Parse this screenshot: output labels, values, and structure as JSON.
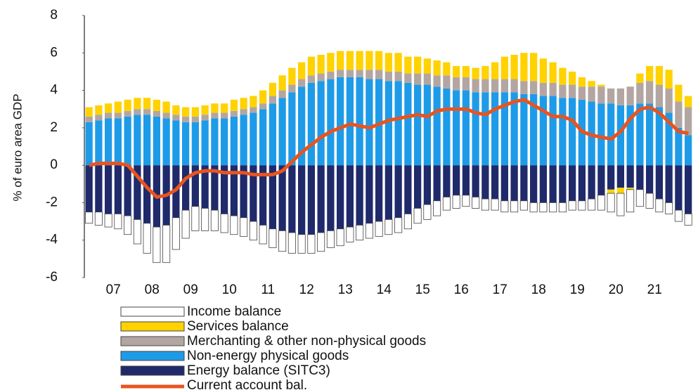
{
  "chart_data": {
    "type": "bar",
    "stacked": true,
    "y_label": "% of euro area GDP",
    "ylim": [
      -6,
      8
    ],
    "yticks": [
      -6,
      -4,
      -2,
      0,
      2,
      4,
      6,
      8
    ],
    "categories": [
      null,
      null,
      "07",
      null,
      null,
      null,
      "08",
      null,
      null,
      null,
      "09",
      null,
      null,
      null,
      "10",
      null,
      null,
      null,
      "11",
      null,
      null,
      null,
      "12",
      null,
      null,
      null,
      "13",
      null,
      null,
      null,
      "14",
      null,
      null,
      null,
      "15",
      null,
      null,
      null,
      "16",
      null,
      null,
      null,
      "17",
      null,
      null,
      null,
      "18",
      null,
      null,
      null,
      "19",
      null,
      null,
      null,
      "20",
      null,
      null,
      null,
      "21",
      null,
      null,
      null,
      null
    ],
    "series": [
      {
        "name": "Income balance",
        "color": "#ffffff",
        "values": [
          -0.6,
          -0.7,
          -0.7,
          -0.8,
          -1.0,
          -1.3,
          -1.6,
          -1.9,
          -2.0,
          -1.7,
          -1.5,
          -1.3,
          -1.2,
          -1.1,
          -1.0,
          -1.0,
          -1.0,
          -1.0,
          -1.0,
          -1.0,
          -1.1,
          -1.1,
          -1.0,
          -1.0,
          -1.0,
          -0.9,
          -0.9,
          -0.8,
          -0.8,
          -0.8,
          -0.8,
          -0.8,
          -0.8,
          -0.8,
          -0.8,
          -0.8,
          -0.8,
          -0.7,
          -0.7,
          -0.6,
          -0.6,
          -0.6,
          -0.6,
          -0.6,
          -0.6,
          -0.5,
          -0.5,
          -0.5,
          -0.5,
          -0.5,
          -0.5,
          -0.5,
          -0.6,
          -0.8,
          -1.0,
          -1.2,
          -1.2,
          -0.9,
          -0.8,
          -0.7,
          -0.6,
          -0.6,
          -0.6
        ]
      },
      {
        "name": "Services balance",
        "color": "#ffd200",
        "values": [
          0.5,
          0.5,
          0.5,
          0.6,
          0.6,
          0.6,
          0.6,
          0.6,
          0.6,
          0.5,
          0.5,
          0.5,
          0.5,
          0.5,
          0.5,
          0.6,
          0.6,
          0.6,
          0.7,
          0.7,
          0.8,
          0.9,
          0.9,
          1.0,
          1.0,
          1.0,
          1.0,
          1.0,
          1.0,
          1.0,
          1.0,
          1.0,
          1.0,
          0.9,
          0.9,
          0.8,
          0.8,
          0.7,
          0.6,
          0.6,
          0.6,
          0.7,
          0.9,
          1.2,
          1.3,
          1.5,
          1.5,
          1.3,
          1.1,
          0.9,
          0.7,
          0.5,
          0.3,
          0.1,
          -0.2,
          -0.3,
          -0.1,
          0.5,
          0.8,
          1.0,
          1.0,
          0.9,
          0.6
        ]
      },
      {
        "name": "Merchanting & other non-physical goods",
        "color": "#b3a6a2",
        "values": [
          0.3,
          0.3,
          0.3,
          0.3,
          0.3,
          0.3,
          0.3,
          0.3,
          0.3,
          0.3,
          0.3,
          0.3,
          0.3,
          0.3,
          0.3,
          0.3,
          0.3,
          0.3,
          0.3,
          0.4,
          0.4,
          0.4,
          0.4,
          0.4,
          0.4,
          0.4,
          0.4,
          0.4,
          0.4,
          0.5,
          0.5,
          0.5,
          0.5,
          0.5,
          0.6,
          0.6,
          0.6,
          0.7,
          0.7,
          0.7,
          0.7,
          0.7,
          0.7,
          0.7,
          0.7,
          0.7,
          0.7,
          0.7,
          0.7,
          0.7,
          0.7,
          0.7,
          0.8,
          0.9,
          0.8,
          0.9,
          1.0,
          1.1,
          1.2,
          1.2,
          1.3,
          1.4,
          1.5
        ]
      },
      {
        "name": "Non-energy physical goods",
        "color": "#1e9be8",
        "values": [
          2.3,
          2.4,
          2.5,
          2.5,
          2.6,
          2.7,
          2.7,
          2.6,
          2.5,
          2.4,
          2.3,
          2.3,
          2.4,
          2.5,
          2.5,
          2.6,
          2.7,
          2.8,
          3.0,
          3.3,
          3.6,
          3.9,
          4.2,
          4.4,
          4.5,
          4.6,
          4.7,
          4.7,
          4.7,
          4.6,
          4.6,
          4.5,
          4.5,
          4.4,
          4.3,
          4.3,
          4.2,
          4.1,
          4.0,
          4.0,
          3.9,
          3.9,
          3.9,
          3.9,
          3.9,
          3.8,
          3.8,
          3.7,
          3.7,
          3.6,
          3.6,
          3.5,
          3.4,
          3.3,
          3.3,
          3.2,
          3.2,
          3.3,
          3.3,
          3.1,
          2.8,
          2.0,
          1.6
        ]
      },
      {
        "name": "Energy balance (SITC3)",
        "color": "#1f2a6b",
        "values": [
          -2.5,
          -2.5,
          -2.6,
          -2.6,
          -2.7,
          -2.9,
          -3.1,
          -3.3,
          -3.2,
          -2.8,
          -2.4,
          -2.2,
          -2.3,
          -2.4,
          -2.6,
          -2.7,
          -2.8,
          -3.0,
          -3.2,
          -3.4,
          -3.5,
          -3.6,
          -3.7,
          -3.7,
          -3.6,
          -3.5,
          -3.4,
          -3.3,
          -3.2,
          -3.1,
          -3.0,
          -2.9,
          -2.8,
          -2.6,
          -2.3,
          -2.1,
          -1.9,
          -1.7,
          -1.6,
          -1.6,
          -1.7,
          -1.8,
          -1.8,
          -1.9,
          -1.9,
          -1.9,
          -2.0,
          -2.0,
          -2.0,
          -2.0,
          -1.9,
          -1.9,
          -1.8,
          -1.6,
          -1.3,
          -1.2,
          -1.2,
          -1.3,
          -1.5,
          -1.8,
          -2.0,
          -2.4,
          -2.6
        ]
      },
      {
        "name": "Current account bal.",
        "color": "#e8541e",
        "type": "line",
        "values": [
          0.0,
          0.1,
          0.1,
          0.1,
          0.0,
          -0.6,
          -1.2,
          -1.7,
          -1.6,
          -1.3,
          -0.7,
          -0.4,
          -0.3,
          -0.3,
          -0.4,
          -0.4,
          -0.4,
          -0.5,
          -0.5,
          -0.5,
          -0.3,
          0.2,
          0.7,
          1.1,
          1.5,
          1.8,
          2.0,
          2.2,
          2.1,
          2.0,
          2.2,
          2.4,
          2.5,
          2.6,
          2.7,
          2.6,
          2.9,
          3.0,
          3.0,
          3.0,
          2.8,
          2.7,
          3.0,
          3.2,
          3.4,
          3.5,
          3.2,
          2.9,
          2.6,
          2.6,
          2.4,
          1.8,
          1.6,
          1.5,
          1.4,
          1.8,
          2.5,
          3.0,
          3.1,
          2.8,
          2.3,
          1.8,
          1.7
        ]
      }
    ]
  }
}
